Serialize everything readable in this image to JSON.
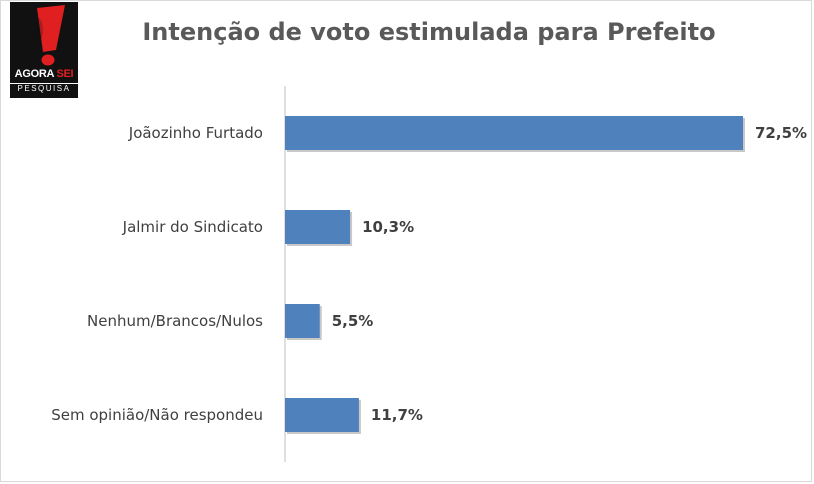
{
  "logo": {
    "brand_main": "AGORA ",
    "brand_accent": "SEI",
    "sub": "PESQUISA",
    "colors": {
      "background": "#111111",
      "mark": "#e02020"
    }
  },
  "chart_data": {
    "type": "bar",
    "orientation": "horizontal",
    "title": "Intenção de voto estimulada para Prefeito",
    "categories": [
      "Joãozinho Furtado",
      "Jalmir do Sindicato",
      "Nenhum/Brancos/Nulos",
      "Sem opinião/Não respondeu"
    ],
    "values": [
      72.5,
      10.3,
      5.5,
      11.7
    ],
    "value_labels": [
      "72,5%",
      "10,3%",
      "5,5%",
      "11,7%"
    ],
    "xlim": [
      0,
      72.5
    ],
    "bar_color": "#4f81bd",
    "grid": false,
    "legend": "none"
  }
}
